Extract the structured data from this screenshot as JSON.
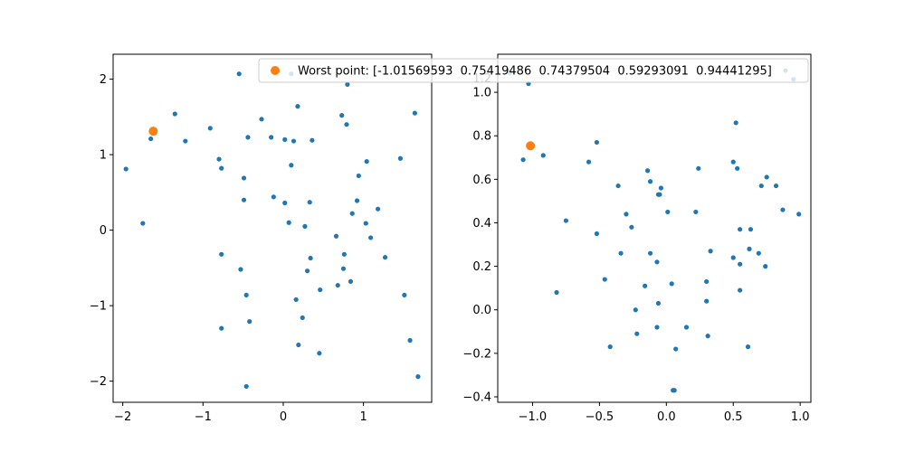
{
  "figure": {
    "background": "#ffffff"
  },
  "colors": {
    "series_blue": "#1f77b4",
    "worst_orange": "#ff7f0e",
    "axis": "#000000",
    "legend_border": "#cccccc"
  },
  "legend": {
    "label": "Worst point: [-1.01569593  0.75419486  0.74379504  0.59293091  0.94441295]",
    "location": "top-center"
  },
  "chart_data": [
    {
      "type": "scatter",
      "title": "",
      "xlabel": "",
      "ylabel": "",
      "xlim": [
        -2.12,
        1.85
      ],
      "ylim": [
        -2.28,
        2.33
      ],
      "grid": false,
      "xticks": [
        -2,
        -1,
        0,
        1
      ],
      "xtick_labels": [
        "−2",
        "−1",
        "0",
        "1"
      ],
      "yticks": [
        -2,
        -1,
        0,
        1,
        2
      ],
      "ytick_labels": [
        "−2",
        "−1",
        "0",
        "1",
        "2"
      ],
      "series": [
        {
          "color": "#1f77b4",
          "marker_size": "small",
          "x": [
            -0.55,
            0.1,
            0.18,
            0.8,
            -1.35,
            -0.91,
            -0.27,
            0.73,
            0.79,
            1.64,
            -1.65,
            -1.22,
            -0.44,
            -0.15,
            0.02,
            0.13,
            0.36,
            -1.96,
            -0.8,
            1.04,
            0.1,
            -0.77,
            0.94,
            1.46,
            -0.49,
            -0.12,
            0.02,
            0.33,
            0.92,
            -0.49,
            0.86,
            1.18,
            -1.75,
            0.07,
            0.27,
            1.03,
            1.09,
            0.66,
            -0.77,
            0.34,
            1.27,
            0.76,
            0.3,
            -0.53,
            0.75,
            0.84,
            0.68,
            0.46,
            1.51,
            -0.46,
            0.16,
            0.24,
            -0.77,
            -0.42,
            1.58,
            0.19,
            0.45,
            1.68,
            -0.46
          ],
          "y": [
            2.07,
            2.07,
            1.64,
            1.93,
            1.54,
            1.35,
            1.47,
            1.52,
            1.4,
            1.55,
            1.21,
            1.18,
            1.23,
            1.23,
            1.2,
            1.18,
            1.19,
            0.81,
            0.94,
            0.91,
            0.86,
            0.82,
            0.72,
            0.95,
            0.69,
            0.44,
            0.36,
            0.37,
            0.39,
            0.4,
            0.22,
            0.28,
            0.09,
            0.1,
            0.05,
            0.09,
            -0.1,
            -0.08,
            -0.32,
            -0.37,
            -0.36,
            -0.32,
            -0.54,
            -0.52,
            -0.51,
            -0.68,
            -0.73,
            -0.79,
            -0.86,
            -0.86,
            -0.92,
            -1.16,
            -1.3,
            -1.21,
            -1.46,
            -1.52,
            -1.63,
            -1.94,
            -2.07
          ]
        },
        {
          "color": "#ff7f0e",
          "marker_size": "large",
          "label": "Worst point: [-1.01569593  0.75419486  0.74379504  0.59293091  0.94441295]",
          "x": [
            -1.62
          ],
          "y": [
            1.31
          ]
        }
      ]
    },
    {
      "type": "scatter",
      "title": "",
      "xlabel": "",
      "ylabel": "",
      "xlim": [
        -1.26,
        1.08
      ],
      "ylim": [
        -0.425,
        1.175
      ],
      "grid": false,
      "xticks": [
        -1.0,
        -0.5,
        0.0,
        0.5,
        1.0
      ],
      "xtick_labels": [
        "−1.0",
        "−0.5",
        "0.0",
        "0.5",
        "1.0"
      ],
      "yticks": [
        -0.4,
        -0.2,
        0.0,
        0.2,
        0.4,
        0.6,
        0.8,
        1.0
      ],
      "ytick_labels": [
        "−0.4",
        "−0.2",
        "0.0",
        "0.2",
        "0.4",
        "0.6",
        "0.8",
        "1.0"
      ],
      "partially_hidden_tick_label": "1.2",
      "series": [
        {
          "color": "#1f77b4",
          "marker_size": "small",
          "x": [
            -1.17,
            -1.03,
            -1.07,
            -0.92,
            -0.52,
            -0.58,
            -0.75,
            -0.36,
            -0.14,
            -0.12,
            -0.05,
            -0.06,
            -0.04,
            0.24,
            0.52,
            0.5,
            0.53,
            0.75,
            0.71,
            0.82,
            -0.3,
            -0.26,
            -0.52,
            0.01,
            0.22,
            0.87,
            0.99,
            -0.82,
            -0.46,
            -0.34,
            -0.12,
            -0.07,
            0.55,
            0.63,
            0.33,
            0.5,
            0.62,
            0.55,
            0.69,
            0.74,
            -0.16,
            0.04,
            -0.06,
            0.3,
            0.55,
            0.3,
            -0.23,
            -0.07,
            0.15,
            -0.22,
            -0.42,
            0.07,
            0.31,
            0.61,
            0.06,
            0.05,
            0.89,
            0.95
          ],
          "y": [
            1.09,
            1.04,
            0.69,
            0.71,
            0.77,
            0.68,
            0.41,
            0.57,
            0.64,
            0.59,
            0.53,
            0.53,
            0.56,
            0.65,
            0.86,
            0.68,
            0.65,
            0.61,
            0.57,
            0.57,
            0.44,
            0.38,
            0.35,
            0.45,
            0.45,
            0.46,
            0.44,
            0.08,
            0.14,
            0.26,
            0.26,
            0.22,
            0.37,
            0.37,
            0.27,
            0.24,
            0.28,
            0.21,
            0.26,
            0.2,
            0.11,
            0.12,
            0.03,
            0.13,
            0.09,
            0.04,
            0.0,
            -0.08,
            -0.08,
            -0.11,
            -0.17,
            -0.18,
            -0.12,
            -0.17,
            -0.37,
            -0.37,
            1.1,
            1.06
          ]
        },
        {
          "color": "#ff7f0e",
          "marker_size": "large",
          "label": "Worst point: [-1.01569593  0.75419486  0.74379504  0.59293091  0.94441295]",
          "x": [
            -1.0157
          ],
          "y": [
            0.7542
          ]
        }
      ]
    }
  ]
}
